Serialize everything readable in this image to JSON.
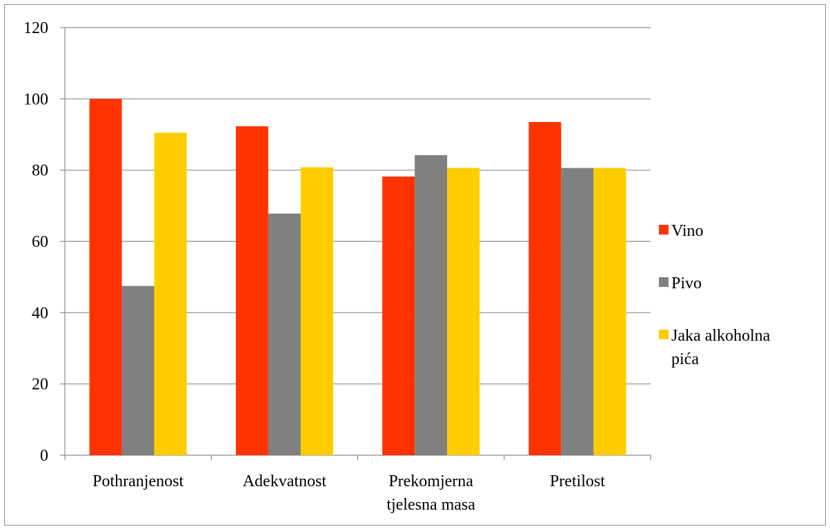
{
  "chart_data": {
    "type": "bar",
    "title": "",
    "xlabel": "",
    "ylabel": "",
    "categories": [
      [
        "Pothranjenost"
      ],
      [
        "Adekvatnost"
      ],
      [
        "Prekomjerna",
        "tjelesna masa"
      ],
      [
        "Pretilost"
      ]
    ],
    "series": [
      {
        "name": "Vino",
        "color": "#ff3300",
        "values": [
          100,
          92.3,
          78.2,
          93.5
        ]
      },
      {
        "name": "Pivo",
        "color": "#808080",
        "values": [
          47.5,
          67.8,
          84.2,
          80.6
        ]
      },
      {
        "name": "Jaka alkoholna pića",
        "color": "#ffcc00",
        "values": [
          90.5,
          80.8,
          80.6,
          80.6
        ]
      }
    ],
    "ylim": [
      0,
      120
    ],
    "yticks": [
      0,
      20,
      40,
      60,
      80,
      100,
      120
    ],
    "grid": true,
    "legend_position": "right"
  }
}
